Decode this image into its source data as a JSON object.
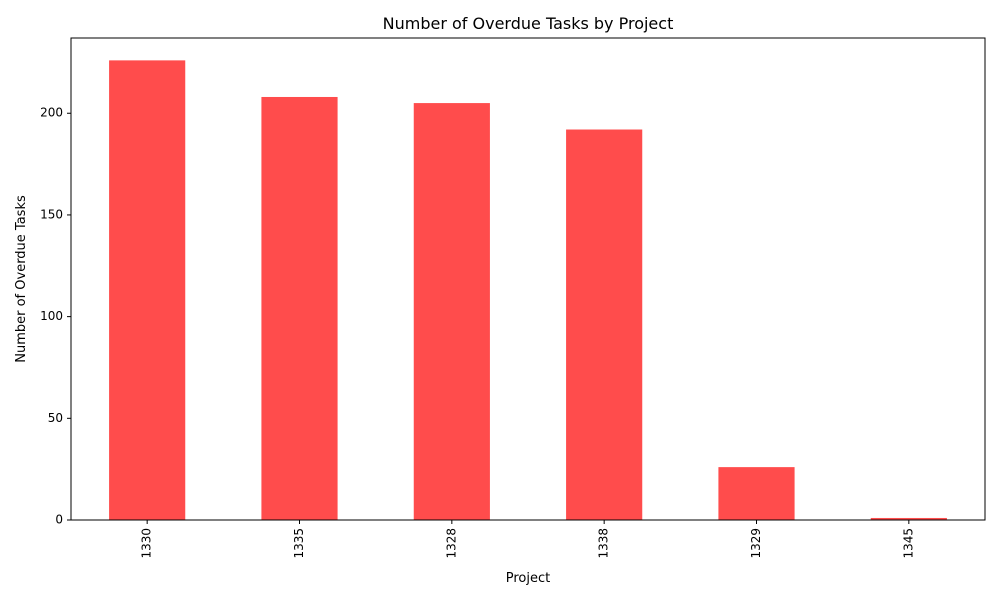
{
  "chart_data": {
    "type": "bar",
    "title": "Number of Overdue Tasks by Project",
    "xlabel": "Project",
    "ylabel": "Number of Overdue Tasks",
    "categories": [
      "1330",
      "1335",
      "1328",
      "1338",
      "1329",
      "1345"
    ],
    "values": [
      226,
      208,
      205,
      192,
      26,
      1
    ],
    "ylim": [
      0,
      237
    ],
    "yticks": [
      0,
      50,
      100,
      150,
      200
    ],
    "grid": false,
    "legend": "none",
    "bar_color": "#ff4c4c",
    "x_tick_rotation": "vertical"
  }
}
